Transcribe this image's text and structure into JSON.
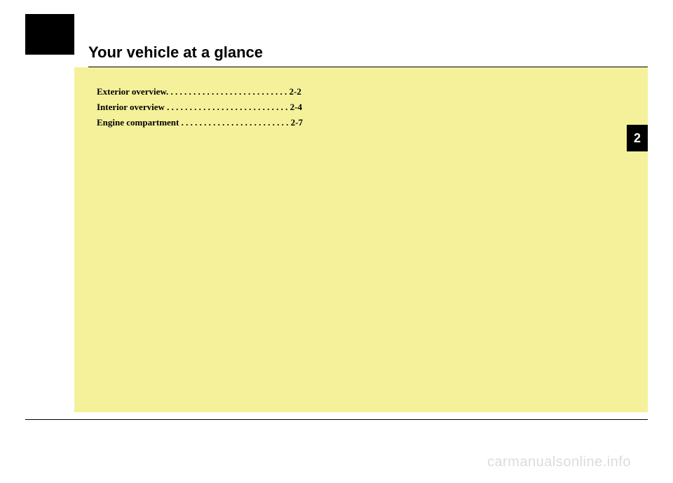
{
  "title": "Your vehicle at a glance",
  "chapter_number": "2",
  "toc": [
    {
      "label": "Exterior overview",
      "dots": ". . . . . . . . . . . . . . . . . . . . . . . . . . .",
      "page": "2-2"
    },
    {
      "label": "Interior overview",
      "dots": " . . . . . . . . . . . . . . . . . . . . . . . . . . .",
      "page": "2-4"
    },
    {
      "label": "Engine compartment",
      "dots": " . . . . . . . . . . . . . . . . . . . . . . . .",
      "page": "2-7"
    }
  ],
  "watermark": "carmanualsonline.info",
  "colors": {
    "yellow_bg": "#f4f19a",
    "black": "#000000",
    "white": "#ffffff",
    "watermark_gray": "#dcdcdc"
  }
}
